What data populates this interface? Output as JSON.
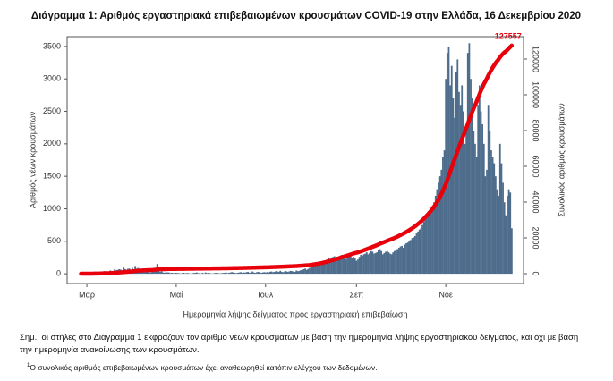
{
  "chart_data": {
    "type": "bar-line",
    "title": "Διάγραμμα 1: Αριθμός εργαστηριακά επιβεβαιωμένων κρουσμάτων COVID-19 στην Ελλάδα, 16 Δεκεμβρίου 2020",
    "x_label": "Ημερομηνία λήψης δείγματος προς εργαστηριακή επιβεβαίωση",
    "y_label": "Αριθμός νέων κρουσμάτων",
    "y2_label": "Συνολικός αριθμός κρουσμάτων",
    "note": "Σημ.: οι στήλες στο Διάγραμμα 1 εκφράζουν τον αριθμό νέων κρουσμάτων με βάση την ημερομηνία λήψης εργαστηριακού δείγματος, και όχι με βάση την ημερομηνία ανακοίνωσης των κρουσμάτων.",
    "footnote_marker": "1",
    "footnote": "Ο συνολικός αριθμός επιβεβαιωμένων κρουσμάτων έχει αναθεωρηθεί κατόπιν ελέγχου των δεδομένων.",
    "categories": [
      null,
      null,
      null,
      null,
      "Μαρ",
      null,
      null,
      null,
      null,
      null,
      null,
      null,
      null,
      null,
      null,
      null,
      null,
      null,
      null,
      null,
      null,
      null,
      null,
      null,
      null,
      null,
      null,
      null,
      null,
      null,
      null,
      null,
      null,
      null,
      null,
      null,
      null,
      null,
      null,
      null,
      null,
      null,
      null,
      null,
      null,
      null,
      null,
      null,
      null,
      null,
      null,
      null,
      null,
      null,
      null,
      null,
      null,
      null,
      null,
      null,
      null,
      null,
      null,
      null,
      null,
      "Μαΐ",
      null,
      null,
      null,
      null,
      null,
      null,
      null,
      null,
      null,
      null,
      null,
      null,
      null,
      null,
      null,
      null,
      null,
      null,
      null,
      null,
      null,
      null,
      null,
      null,
      null,
      null,
      null,
      null,
      null,
      null,
      null,
      null,
      null,
      null,
      null,
      null,
      null,
      null,
      null,
      null,
      null,
      null,
      null,
      null,
      null,
      null,
      null,
      null,
      null,
      null,
      null,
      null,
      null,
      null,
      null,
      null,
      null,
      null,
      null,
      null,
      "Ιουλ",
      null,
      null,
      null,
      null,
      null,
      null,
      null,
      null,
      null,
      null,
      null,
      null,
      null,
      null,
      null,
      null,
      null,
      null,
      null,
      null,
      null,
      null,
      null,
      null,
      null,
      null,
      null,
      null,
      null,
      null,
      null,
      null,
      null,
      null,
      null,
      null,
      null,
      null,
      null,
      null,
      null,
      null,
      null,
      null,
      null,
      null,
      null,
      null,
      null,
      null,
      null,
      null,
      null,
      null,
      null,
      null,
      null,
      null,
      null,
      null,
      null,
      "Σεπ",
      null,
      null,
      null,
      null,
      null,
      null,
      null,
      null,
      null,
      null,
      null,
      null,
      null,
      null,
      null,
      null,
      null,
      null,
      null,
      null,
      null,
      null,
      null,
      null,
      null,
      null,
      null,
      null,
      null,
      null,
      null,
      null,
      null,
      null,
      null,
      null,
      null,
      null,
      null,
      null,
      null,
      null,
      null,
      null,
      null,
      null,
      null,
      null,
      null,
      null,
      null,
      null,
      null,
      null,
      null,
      null,
      null,
      null,
      null,
      null,
      "Νοε",
      null,
      null,
      null,
      null,
      null,
      null,
      null,
      null,
      null,
      null,
      null,
      null,
      null,
      null,
      null,
      null,
      null,
      null,
      null,
      null,
      null,
      null,
      null,
      null,
      null,
      null,
      null,
      null,
      null,
      null,
      null,
      null,
      null,
      null,
      null,
      null,
      null,
      null,
      null,
      null,
      null,
      null,
      null,
      null,
      null
    ],
    "series": [
      {
        "name": "Νέα κρούσματα",
        "type": "bar",
        "color": "#4e6d8c",
        "values": [
          1,
          2,
          1,
          3,
          2,
          3,
          0,
          2,
          10,
          14,
          31,
          13,
          5,
          16,
          10,
          38,
          41,
          30,
          20,
          34,
          50,
          35,
          46,
          69,
          54,
          60,
          70,
          65,
          50,
          95,
          73,
          61,
          77,
          80,
          55,
          90,
          60,
          120,
          80,
          90,
          60,
          40,
          45,
          55,
          50,
          30,
          40,
          20,
          25,
          60,
          70,
          80,
          150,
          45,
          30,
          40,
          20,
          15,
          25,
          20,
          20,
          10,
          15,
          10,
          10,
          15,
          10,
          10,
          5,
          10,
          15,
          8,
          10,
          12,
          5,
          5,
          10,
          12,
          15,
          20,
          10,
          8,
          5,
          15,
          5,
          20,
          10,
          15,
          10,
          5,
          5,
          10,
          15,
          10,
          10,
          5,
          10,
          12,
          15,
          20,
          10,
          15,
          20,
          25,
          20,
          15,
          10,
          15,
          20,
          25,
          15,
          20,
          18,
          25,
          30,
          15,
          20,
          35,
          20,
          15,
          25,
          30,
          20,
          15,
          20,
          25,
          20,
          25,
          20,
          30,
          35,
          25,
          30,
          40,
          35,
          30,
          45,
          30,
          25,
          35,
          40,
          30,
          35,
          45,
          40,
          35,
          30,
          50,
          40,
          45,
          55,
          60,
          70,
          80,
          60,
          75,
          90,
          110,
          100,
          120,
          130,
          150,
          140,
          160,
          170,
          190,
          150,
          200,
          220,
          250,
          210,
          230,
          260,
          270,
          200,
          250,
          240,
          280,
          290,
          260,
          250,
          230,
          280,
          270,
          300,
          250,
          260,
          240,
          200,
          220,
          260,
          290,
          280,
          300,
          310,
          330,
          300,
          320,
          350,
          340,
          310,
          320,
          330,
          360,
          380,
          350,
          300,
          320,
          340,
          350,
          330,
          310,
          300,
          330,
          350,
          360,
          380,
          400,
          420,
          430,
          400,
          450,
          470,
          480,
          500,
          520,
          550,
          560,
          580,
          620,
          650,
          680,
          700,
          750,
          800,
          850,
          870,
          900,
          950,
          1000,
          1050,
          1100,
          1200,
          1300,
          1400,
          1500,
          1600,
          1800,
          1900,
          3000,
          3400,
          3500,
          2900,
          3200,
          2700,
          2400,
          3100,
          3300,
          2800,
          2600,
          2900,
          2500,
          2000,
          2200,
          3400,
          3550,
          3000,
          2700,
          2200,
          2000,
          1800,
          2600,
          2900,
          2500,
          2300,
          2000,
          1500,
          1600,
          2600,
          2200,
          1900,
          1800,
          1700,
          1500,
          1300,
          1200,
          2000,
          1700,
          1400,
          1100,
          900,
          1200,
          1300,
          1250,
          700
        ]
      },
      {
        "name": "Συνολικά κρούσματα",
        "type": "line",
        "axis": "y2",
        "color": "#e8000b",
        "values": [
          1,
          3,
          4,
          7,
          9,
          12,
          12,
          14,
          24,
          38,
          69,
          82,
          87,
          103,
          113,
          151,
          192,
          222,
          242,
          276,
          326,
          361,
          407,
          476,
          530,
          590,
          660,
          725,
          775,
          870,
          943,
          1004,
          1081,
          1161,
          1216,
          1306,
          1366,
          1486,
          1566,
          1656,
          1716,
          1756,
          1801,
          1856,
          1906,
          1936,
          1976,
          1996,
          2021,
          2081,
          2151,
          2231,
          2381,
          2426,
          2456,
          2496,
          2516,
          2531,
          2556,
          2576,
          2596,
          2606,
          2621,
          2631,
          2641,
          2656,
          2666,
          2676,
          2681,
          2691,
          2706,
          2714,
          2724,
          2736,
          2741,
          2746,
          2756,
          2768,
          2783,
          2803,
          2813,
          2821,
          2826,
          2841,
          2846,
          2866,
          2876,
          2891,
          2901,
          2906,
          2911,
          2921,
          2936,
          2946,
          2956,
          2961,
          2971,
          2983,
          2998,
          3018,
          3028,
          3043,
          3063,
          3088,
          3108,
          3123,
          3133,
          3148,
          3168,
          3193,
          3208,
          3228,
          3246,
          3271,
          3301,
          3316,
          3336,
          3371,
          3391,
          3406,
          3431,
          3461,
          3481,
          3496,
          3516,
          3541,
          3561,
          3586,
          3606,
          3636,
          3671,
          3696,
          3726,
          3766,
          3801,
          3831,
          3876,
          3906,
          3931,
          3966,
          4006,
          4036,
          4071,
          4116,
          4156,
          4191,
          4221,
          4271,
          4311,
          4356,
          4411,
          4471,
          4541,
          4621,
          4681,
          4756,
          4846,
          4956,
          5056,
          5176,
          5306,
          5456,
          5596,
          5756,
          5926,
          6116,
          6266,
          6466,
          6686,
          6936,
          7146,
          7376,
          7636,
          7906,
          8106,
          8356,
          8596,
          8876,
          9166,
          9426,
          9676,
          9906,
          10186,
          10456,
          10756,
          11006,
          11266,
          11506,
          11706,
          11926,
          12186,
          12476,
          12756,
          13056,
          13366,
          13696,
          13996,
          14316,
          14666,
          15006,
          15316,
          15636,
          15966,
          16326,
          16706,
          17056,
          17356,
          17676,
          18016,
          18366,
          18696,
          19006,
          19306,
          19636,
          19986,
          20346,
          20726,
          21126,
          21546,
          21976,
          22376,
          22826,
          23296,
          23776,
          24276,
          24796,
          25346,
          25906,
          26486,
          27106,
          27756,
          28436,
          29136,
          29886,
          30686,
          31536,
          32406,
          33306,
          34256,
          35256,
          36306,
          37406,
          38606,
          39906,
          41306,
          42806,
          44406,
          46206,
          48106,
          50100,
          52300,
          54600,
          57000,
          59300,
          61700,
          63900,
          66200,
          68500,
          70700,
          72900,
          75100,
          77200,
          79300,
          81400,
          83700,
          86000,
          88200,
          90300,
          92300,
          94200,
          96100,
          98200,
          100300,
          102300,
          104200,
          106000,
          107500,
          109000,
          110800,
          112300,
          113800,
          115200,
          116500,
          117700,
          118800,
          119800,
          121000,
          122000,
          122900,
          123700,
          124300,
          125100,
          125900,
          126800,
          127557
        ]
      }
    ],
    "ylim": [
      -150,
      3650
    ],
    "yticks": [
      0,
      500,
      1000,
      1500,
      2000,
      2500,
      3000,
      3500
    ],
    "y2lim": [
      -5500,
      132500
    ],
    "y2ticks": [
      0,
      20000,
      40000,
      60000,
      80000,
      100000,
      120000
    ],
    "grid": false
  }
}
